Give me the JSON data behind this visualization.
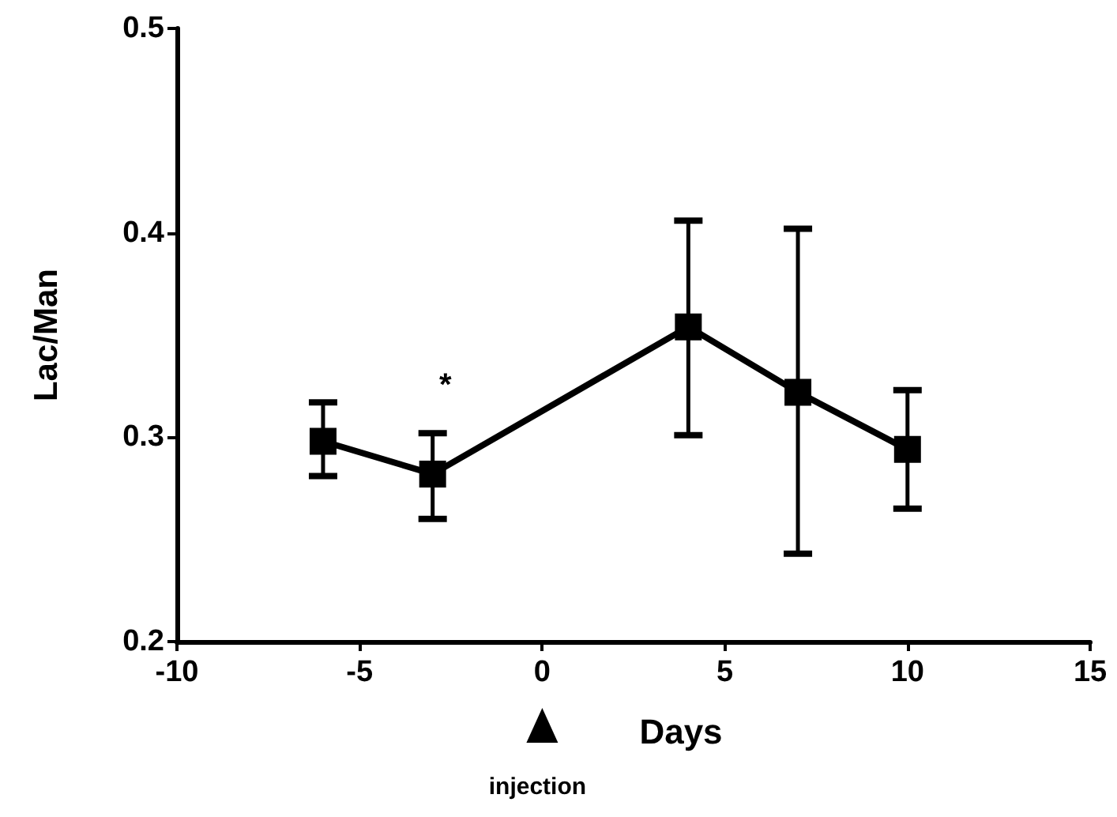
{
  "chart_data": {
    "type": "line",
    "xlabel": "Days",
    "ylabel": "Lac/Man",
    "x": [
      -6,
      -3,
      4,
      7,
      10
    ],
    "values": [
      0.298,
      0.282,
      0.354,
      0.322,
      0.294
    ],
    "errors": [
      [
        0.281,
        0.317
      ],
      [
        0.26,
        0.302
      ],
      [
        0.301,
        0.406
      ],
      [
        0.243,
        0.402
      ],
      [
        0.265,
        0.323
      ]
    ],
    "color": "#000000",
    "marker": "square",
    "line_style": "solid",
    "grid": false,
    "xlim": [
      -10,
      15
    ],
    "xticks": [
      -10,
      -5,
      0,
      5,
      10,
      15
    ],
    "ylim": [
      0.2,
      0.5
    ],
    "yticks": [
      0.2,
      0.3,
      0.4,
      0.5
    ],
    "annotations": [
      "*",
      "injection"
    ]
  }
}
